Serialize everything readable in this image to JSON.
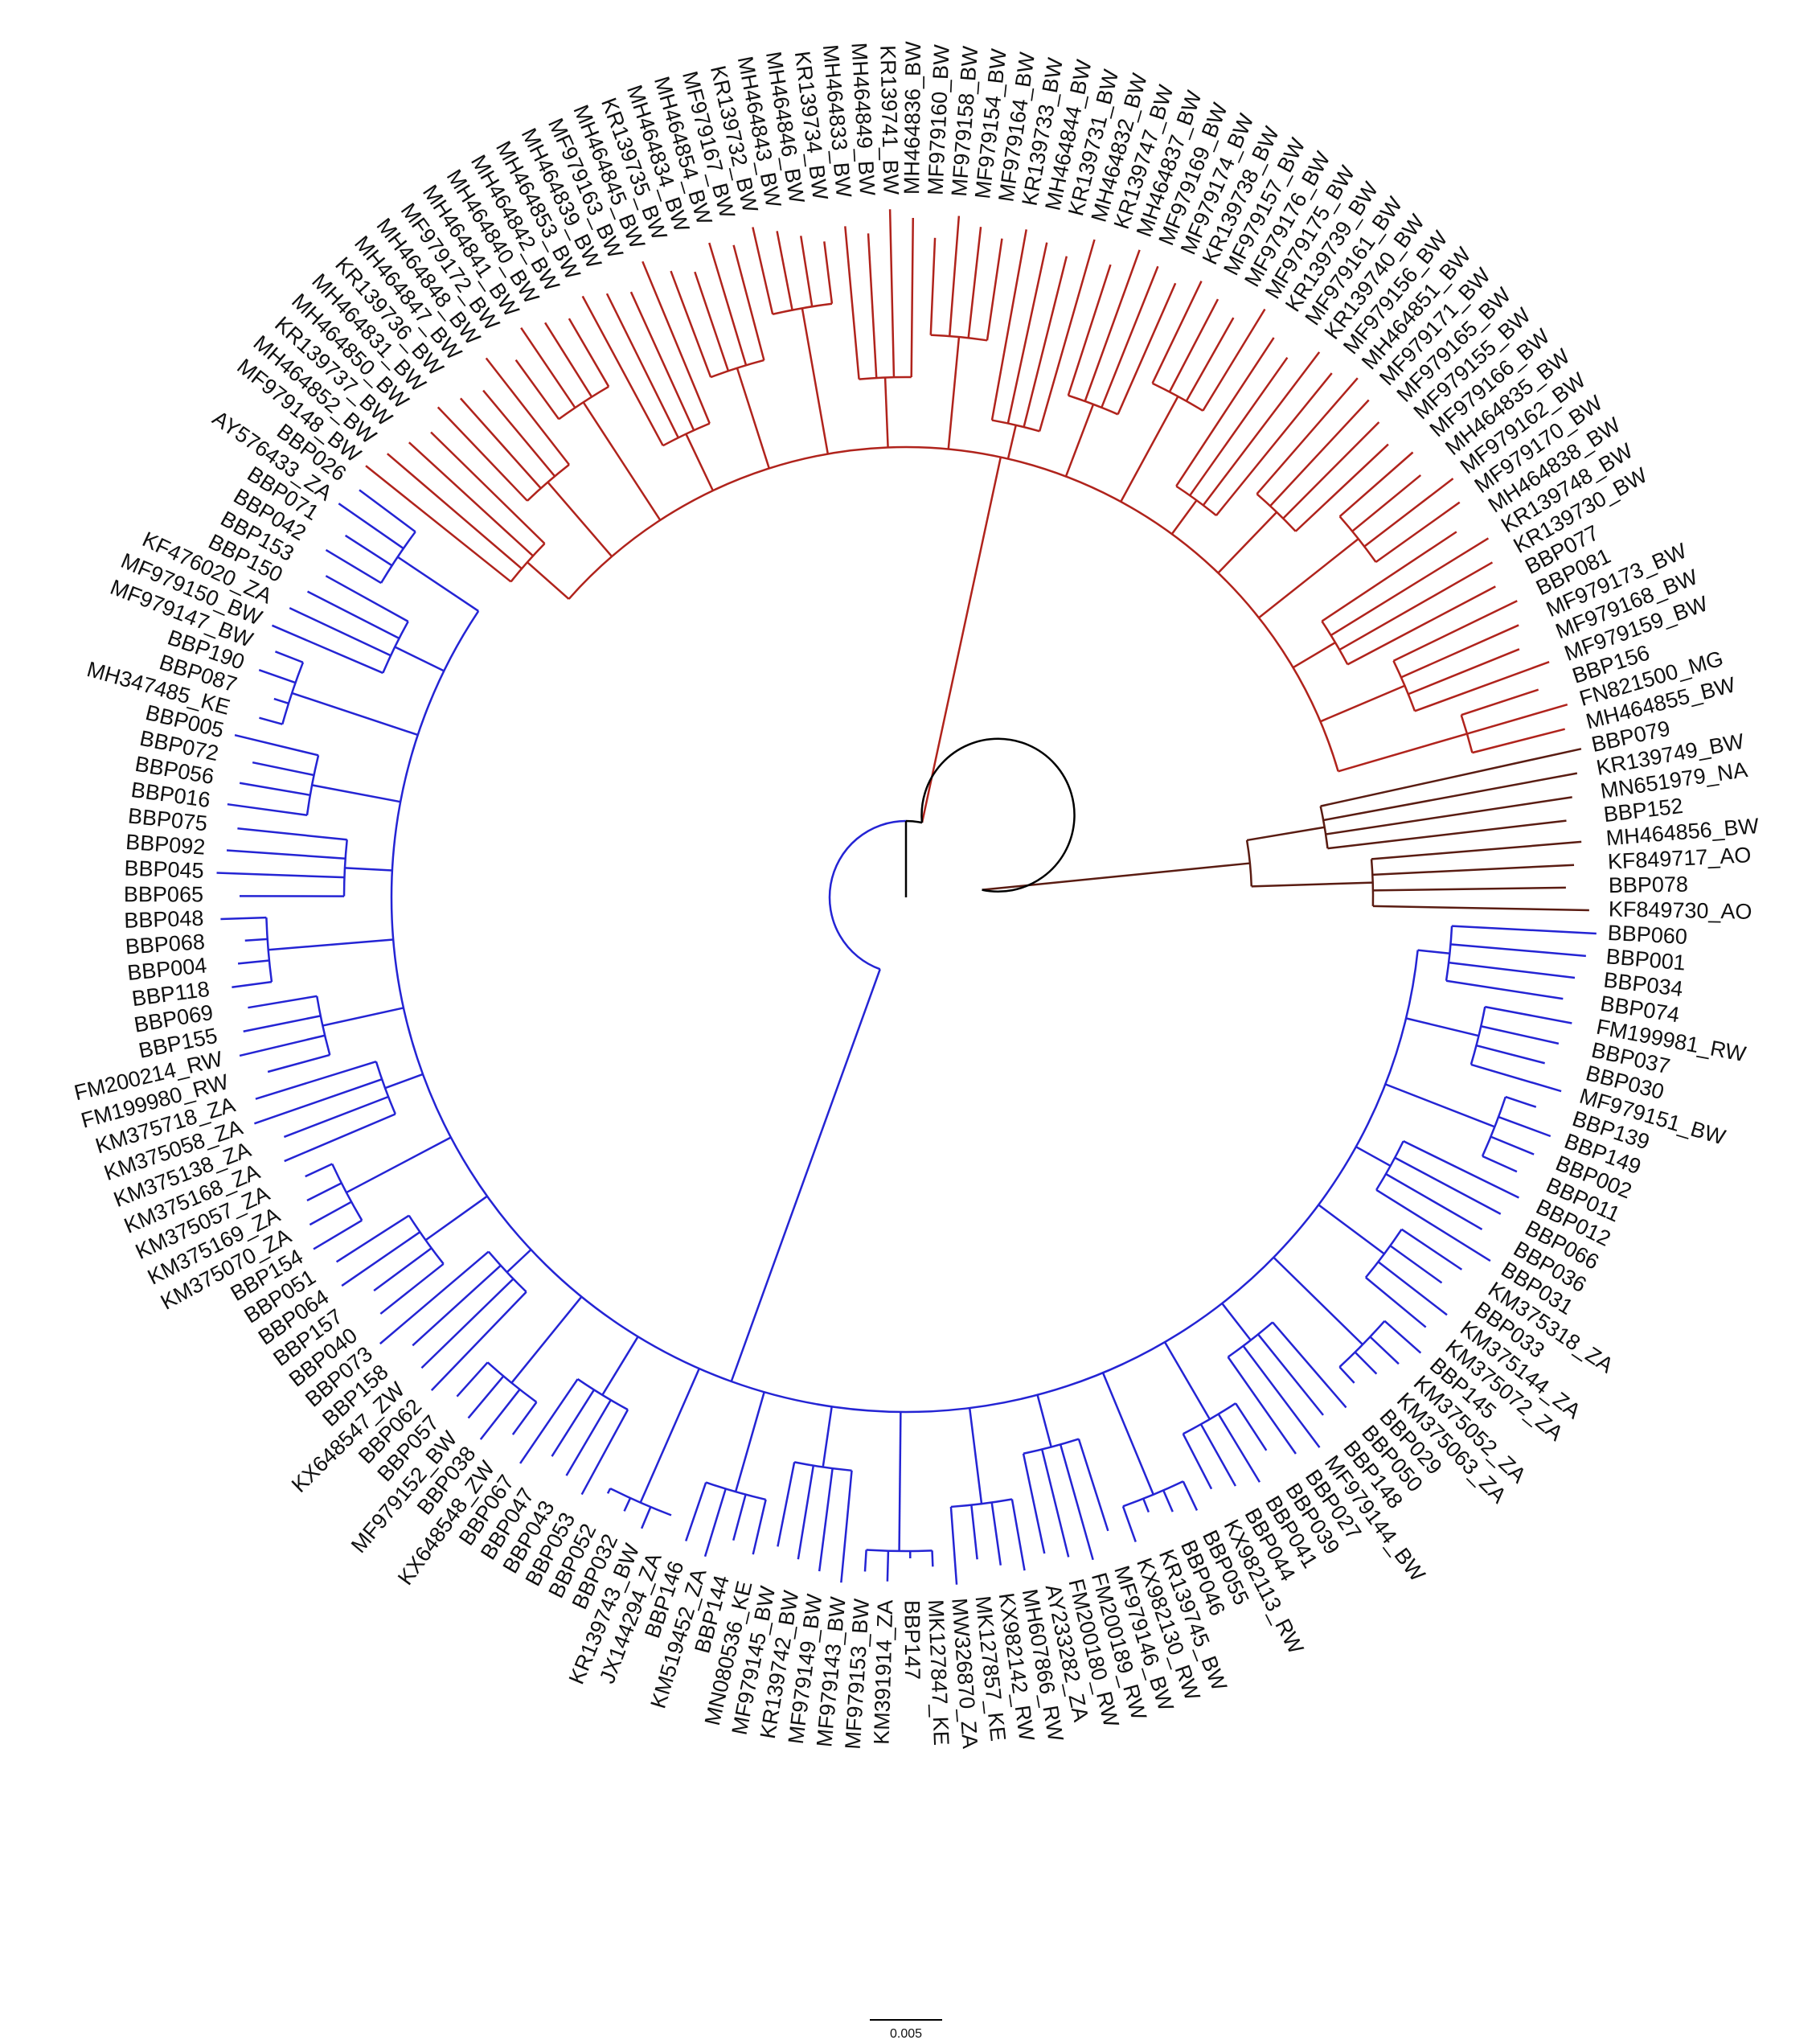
{
  "clades": [
    {
      "color": "#2424d4",
      "leaves": [
        "BBP060",
        "BBP001",
        "BBP034",
        "BBP074",
        "FM199981_RW",
        "BBP037",
        "BBP030",
        "MF979151_BW",
        "BBP139",
        "BBP149",
        "BBP002",
        "BBP011",
        "BBP012",
        "BBP066",
        "BBP036",
        "BBP031",
        "KM375318_ZA",
        "BBP033",
        "KM375144_ZA",
        "KM375072_ZA",
        "BBP145",
        "KM375052_ZA",
        "KM375063_ZA",
        "BBP029",
        "BBP050",
        "BBP148",
        "MF979144_BW",
        "BBP027",
        "BBP039",
        "BBP041",
        "BBP044",
        "KX982113_RW",
        "BBP055",
        "BBP046",
        "KR139745_BW",
        "KX982130_RW",
        "MF979146_BW",
        "FM200189_RW",
        "FM200180_RW",
        "AY233282_ZA",
        "MH607866_RW",
        "KX982142_RW",
        "MK127857_KE",
        "MW326870_ZA",
        "MK127847_KE",
        "BBP147",
        "KM391914_ZA",
        "MF979153_BW",
        "MF979143_BW",
        "MF979149_BW",
        "KR139742_BW",
        "MF979145_BW",
        "MN080536_KE",
        "BBP144",
        "KM519452_ZA",
        "BBP146",
        "JX144294_ZA",
        "KR139743_BW",
        "BBP032",
        "BBP052",
        "BBP053",
        "BBP043",
        "BBP047",
        "BBP067",
        "KX648548_ZW",
        "BBP038",
        "MF979152_BW",
        "BBP057",
        "BBP062",
        "KX648547_ZW",
        "BBP158",
        "BBP073",
        "BBP040",
        "BBP157",
        "BBP064",
        "BBP051",
        "BBP154",
        "KM375070_ZA",
        "KM375169_ZA",
        "KM375057_ZA",
        "KM375168_ZA",
        "KM375138_ZA",
        "KM375058_ZA",
        "KM375718_ZA",
        "FM199980_RW",
        "FM200214_RW",
        "BBP155",
        "BBP069",
        "BBP118",
        "BBP004",
        "BBP068",
        "BBP048",
        "BBP065",
        "BBP045",
        "BBP092",
        "BBP075",
        "BBP016",
        "BBP056",
        "BBP072",
        "BBP005",
        "MH347485_KE",
        "BBP087",
        "BBP190",
        "MF979147_BW",
        "MF979150_BW",
        "KF476020_ZA",
        "BBP150",
        "BBP153",
        "BBP042",
        "BBP071",
        "AY576433_ZA",
        "BBP026"
      ]
    },
    {
      "color": "#b0231c",
      "leaves": [
        "MF979148_BW",
        "MH464852_BW",
        "KR139737_BW",
        "MH464850_BW",
        "MH464831_BW",
        "KR139736_BW",
        "MH464847_BW",
        "MH464848_BW",
        "MF979172_BW",
        "MH464841_BW",
        "MH464840_BW",
        "MH464842_BW",
        "MH464853_BW",
        "MH464839_BW",
        "MF979163_BW",
        "MH464845_BW",
        "KR139735_BW",
        "MH464834_BW",
        "MH464854_BW",
        "MF979167_BW",
        "KR139732_BW",
        "MH464843_BW",
        "MH464846_BW",
        "KR139734_BW",
        "MH464833_BW",
        "MH464849_BW",
        "KR139741_BW",
        "MH464836_BW",
        "MF979160_BW",
        "MF979158_BW",
        "MF979154_BW",
        "MF979164_BW",
        "KR139733_BW",
        "MH464844_BW",
        "KR139731_BW",
        "MH464832_BW",
        "KR139747_BW",
        "MH464837_BW",
        "MF979169_BW",
        "MF979174_BW",
        "KR139738_BW",
        "MF979157_BW",
        "MF979176_BW",
        "MF979175_BW",
        "KR139739_BW",
        "MF979161_BW",
        "KR139740_BW",
        "MF979156_BW",
        "MH464851_BW",
        "MF979171_BW",
        "MF979165_BW",
        "MF979155_BW",
        "MF979166_BW",
        "MH464835_BW",
        "MF979162_BW",
        "MF979170_BW",
        "MH464838_BW",
        "KR139748_BW",
        "KR139730_BW",
        "BBP077",
        "BBP081",
        "MF979173_BW",
        "MF979168_BW",
        "MF979159_BW",
        "BBP156",
        "FN821500_MG",
        "MH464855_BW"
      ]
    },
    {
      "color": "#5a1c12",
      "leaves": [
        "BBP079",
        "KR139749_BW",
        "MN651979_NA",
        "BBP152",
        "MH464856_BW",
        "KF849717_AO",
        "BBP078",
        "KF849730_AO"
      ]
    }
  ],
  "scale_bar": "0.005"
}
